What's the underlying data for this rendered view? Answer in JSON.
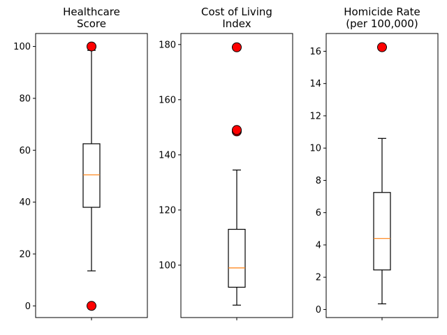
{
  "chart_data": [
    {
      "type": "box",
      "title": [
        "Healthcare",
        "Score"
      ],
      "ylim": [
        -4.5,
        105
      ],
      "yticks": [
        0,
        20,
        40,
        60,
        80,
        100
      ],
      "box": {
        "whisker_low": 13.5,
        "q1": 38,
        "median": 50.5,
        "q3": 62.5,
        "whisker_high": 98.5
      },
      "outliers": [
        0,
        100
      ],
      "grid": false
    },
    {
      "type": "box",
      "title": [
        "Cost of Living",
        "Index"
      ],
      "ylim": [
        81,
        184
      ],
      "yticks": [
        100,
        120,
        140,
        160,
        180
      ],
      "box": {
        "whisker_low": 85.5,
        "q1": 92,
        "median": 99,
        "q3": 113,
        "whisker_high": 134.5
      },
      "outliers": [
        148.5,
        149,
        179
      ],
      "grid": false
    },
    {
      "type": "box",
      "title": [
        "Homicide Rate",
        "(per 100,000)"
      ],
      "ylim": [
        -0.5,
        17.1
      ],
      "yticks": [
        0,
        2,
        4,
        6,
        8,
        10,
        12,
        14,
        16
      ],
      "box": {
        "whisker_low": 0.35,
        "q1": 2.45,
        "median": 4.4,
        "q3": 7.25,
        "whisker_high": 10.6
      },
      "outliers": [
        16.25
      ],
      "grid": false
    }
  ],
  "colors": {
    "box": "#000000",
    "median": "#ff7f0e",
    "outlier_fill": "#ff0000",
    "outlier_edge": "#000000"
  }
}
